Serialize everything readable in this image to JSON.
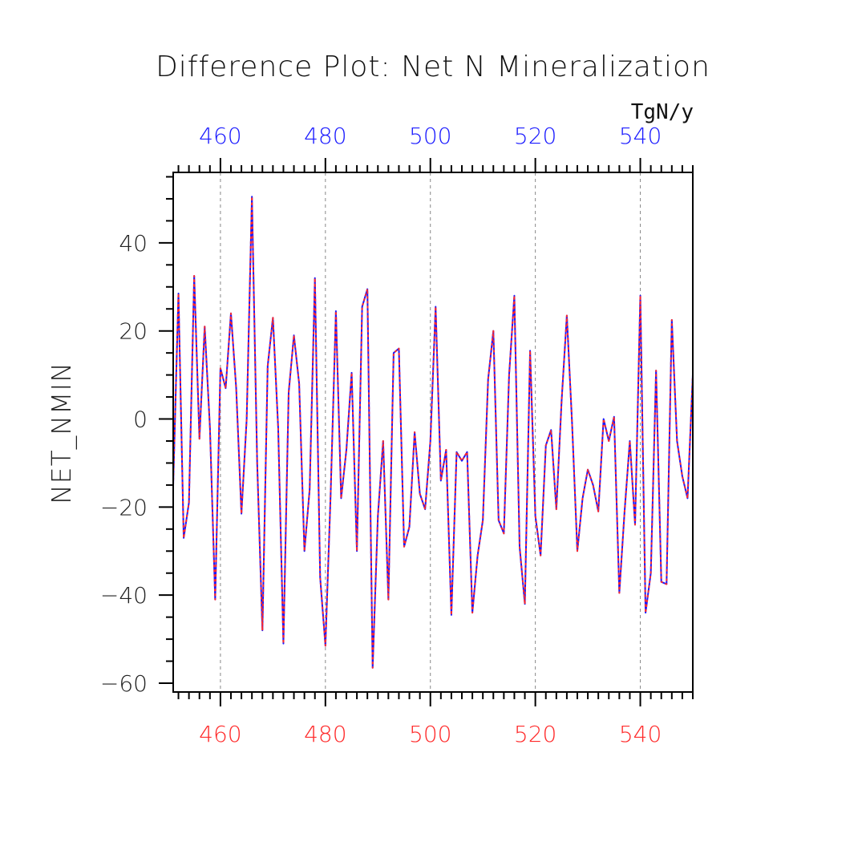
{
  "chart_data": {
    "type": "line",
    "title": "Difference Plot: Net N Mineralization",
    "ylabel": "NET_NMIN",
    "units": "TgN/y",
    "xlim": [
      451,
      550
    ],
    "ylim": [
      -62,
      56
    ],
    "x_ticks_bottom": [
      "460",
      "480",
      "500",
      "520",
      "540"
    ],
    "x_ticks_top": [
      "460",
      "480",
      "500",
      "520",
      "540"
    ],
    "y_ticks": [
      "40",
      "20",
      "0",
      "−20",
      "−40",
      "−60"
    ],
    "grid": "vertical-dashed",
    "colors": {
      "series_a": "#1a1aff",
      "series_b": "#ff2a2a",
      "bottom_axis": "#ff2a2a",
      "top_axis": "#1a1aff",
      "frame": "#000000",
      "grid": "#888888"
    },
    "x": [
      451,
      452,
      453,
      454,
      455,
      456,
      457,
      458,
      459,
      460,
      461,
      462,
      463,
      464,
      465,
      466,
      467,
      468,
      469,
      470,
      471,
      472,
      473,
      474,
      475,
      476,
      477,
      478,
      479,
      480,
      481,
      482,
      483,
      484,
      485,
      486,
      487,
      488,
      489,
      490,
      491,
      492,
      493,
      494,
      495,
      496,
      497,
      498,
      499,
      500,
      501,
      502,
      503,
      504,
      505,
      506,
      507,
      508,
      509,
      510,
      511,
      512,
      513,
      514,
      515,
      516,
      517,
      518,
      519,
      520,
      521,
      522,
      523,
      524,
      525,
      526,
      527,
      528,
      529,
      530,
      531,
      532,
      533,
      534,
      535,
      536,
      537,
      538,
      539,
      540,
      541,
      542,
      543,
      544,
      545,
      546,
      547,
      548,
      549,
      550
    ],
    "series": [
      {
        "name": "blue",
        "values": [
          -15,
          28.5,
          -27,
          -19,
          32.5,
          -4.5,
          21,
          -2,
          -41,
          11.5,
          7,
          24,
          7,
          -21.5,
          0,
          50.5,
          -10,
          -48,
          12,
          23,
          -2,
          -51,
          6,
          19,
          8,
          -30,
          -16,
          32,
          -36,
          -51.5,
          -17,
          24.5,
          -18,
          -7,
          10.5,
          -30,
          25.5,
          29.5,
          -56.5,
          -22,
          -5,
          -41,
          15,
          16,
          -29,
          -24.5,
          -3,
          -17,
          -20.5,
          -5,
          25.5,
          -14,
          -7,
          -44.5,
          -7.5,
          -9.5,
          -7.5,
          -44,
          -31,
          -23,
          9,
          20,
          -23,
          -26,
          10,
          28,
          -29,
          -42,
          15.5,
          -22,
          -31,
          -6,
          -2.5,
          -20.5,
          4,
          23.5,
          -1,
          -30,
          -18,
          -11.5,
          -15,
          -21,
          0,
          -5,
          0.5,
          -39.5,
          -21,
          -5,
          -24,
          28,
          -44,
          -35,
          11,
          -37,
          -37.5,
          22.5,
          -5,
          -13,
          -18,
          10
        ]
      },
      {
        "name": "red",
        "values": [
          -15,
          28.5,
          -27,
          -19,
          32.5,
          -4.5,
          21,
          -2,
          -41,
          11.5,
          7,
          24,
          7,
          -21.5,
          0,
          50.5,
          -10,
          -48,
          12,
          23,
          -2,
          -51,
          6,
          19,
          8,
          -30,
          -16,
          32,
          -36,
          -51.5,
          -17,
          24.5,
          -18,
          -7,
          10.5,
          -30,
          25.5,
          29.5,
          -56.5,
          -22,
          -5,
          -41,
          15,
          16,
          -29,
          -24.5,
          -3,
          -17,
          -20.5,
          -5,
          25.5,
          -14,
          -7,
          -44.5,
          -7.5,
          -9.5,
          -7.5,
          -44,
          -31,
          -23,
          9,
          20,
          -23,
          -26,
          10,
          28,
          -29,
          -42,
          15.5,
          -22,
          -31,
          -6,
          -2.5,
          -20.5,
          4,
          23.5,
          -1,
          -30,
          -18,
          -11.5,
          -15,
          -21,
          0,
          -5,
          0.5,
          -39.5,
          -21,
          -5,
          -24,
          28,
          -44,
          -35,
          11,
          -37,
          -37.5,
          22.5,
          -5,
          -13,
          -18,
          10
        ]
      }
    ]
  }
}
